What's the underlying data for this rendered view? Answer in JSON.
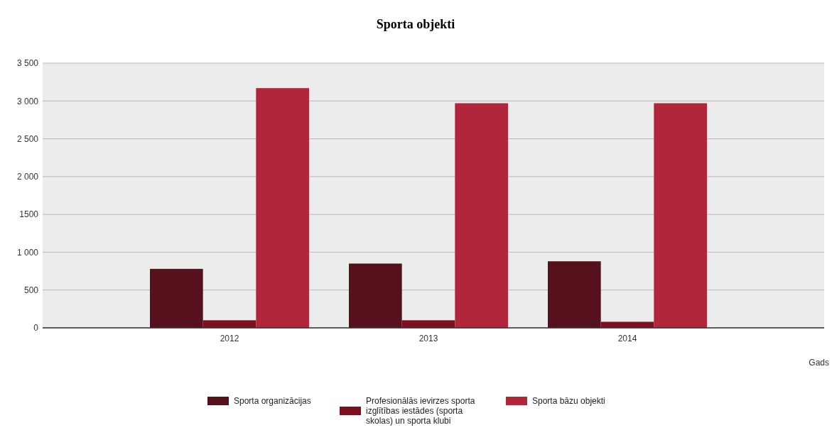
{
  "chart_data": {
    "type": "bar",
    "title": "Sporta objekti",
    "xlabel": "Gads",
    "categories": [
      "2012",
      "2013",
      "2014"
    ],
    "series": [
      {
        "name": "Sporta organizācijas",
        "color": "#55111c",
        "values": [
          780,
          850,
          880
        ]
      },
      {
        "name": "Profesionālās ievirzes sporta izglītības iestādes (sporta skolas) un sporta klubi",
        "color": "#7e0f1e",
        "values": [
          100,
          100,
          80
        ]
      },
      {
        "name": "Sporta bāzu objekti",
        "color": "#b0263b",
        "values": [
          3170,
          2970,
          2970
        ]
      }
    ],
    "ylim": [
      0,
      3500
    ],
    "yticks": [
      0,
      {
        "value": 500,
        "label": "500"
      },
      {
        "value": 1000,
        "label": "1 000"
      },
      {
        "value": 1500,
        "label": "1500"
      },
      {
        "value": 2000,
        "label": "2 000"
      },
      {
        "value": 2500,
        "label": "2 500"
      },
      {
        "value": 3000,
        "label": "3 000"
      },
      {
        "value": 3500,
        "label": "3 500"
      }
    ],
    "grid": "y",
    "legend": "bottom"
  }
}
